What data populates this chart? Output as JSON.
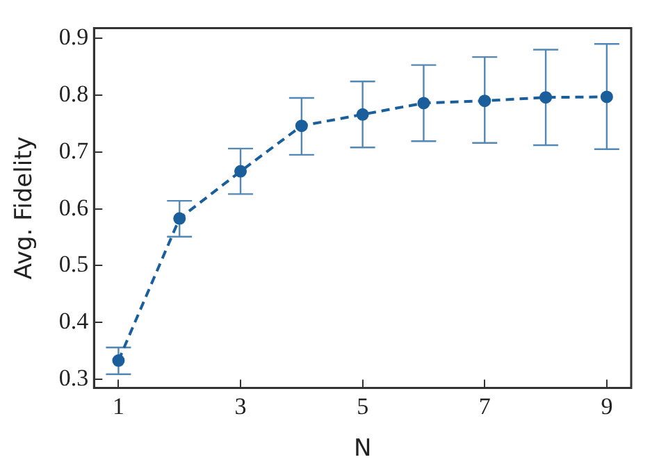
{
  "chart_data": {
    "type": "line",
    "xlabel": "N",
    "ylabel": "Avg. Fidelity",
    "x": [
      1,
      2,
      3,
      4,
      5,
      6,
      7,
      8,
      9
    ],
    "series": [
      {
        "color": "#1a5f9c",
        "values": [
          0.333,
          0.583,
          0.666,
          0.746,
          0.766,
          0.786,
          0.79,
          0.796,
          0.797
        ],
        "errors": [
          [
            0.309,
            0.356
          ],
          [
            0.551,
            0.614
          ],
          [
            0.626,
            0.706
          ],
          [
            0.695,
            0.795
          ],
          [
            0.708,
            0.824
          ],
          [
            0.719,
            0.853
          ],
          [
            0.716,
            0.867
          ],
          [
            0.712,
            0.88
          ],
          [
            0.705,
            0.89
          ]
        ]
      }
    ],
    "xlim": [
      0.6,
      9.4
    ],
    "xticks": [
      1,
      3,
      5,
      7,
      9
    ],
    "ylim": [
      0.285,
      0.918
    ],
    "yticks": [
      0.3,
      0.4,
      0.5,
      0.6,
      0.7,
      0.8,
      0.9
    ],
    "grid": false,
    "legend": false,
    "marker": "circle",
    "line_style": "dashed"
  }
}
